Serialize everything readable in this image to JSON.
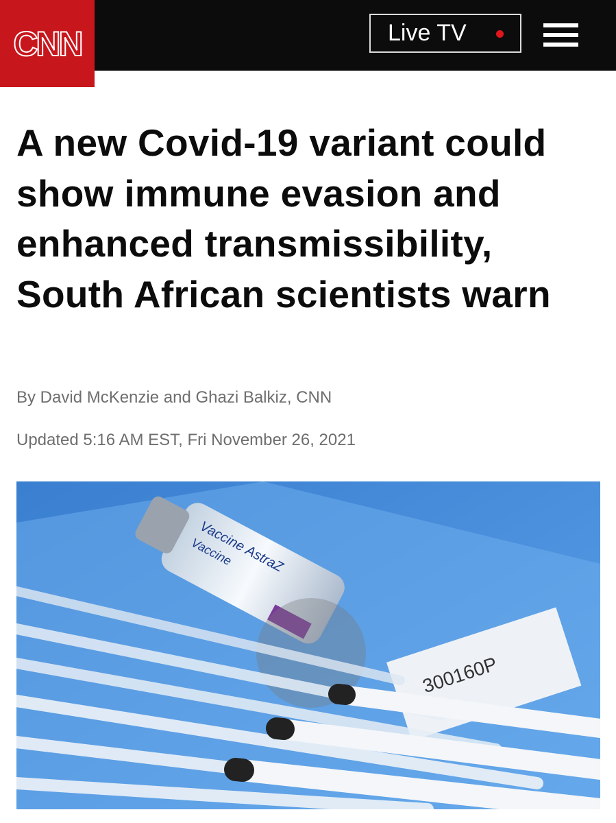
{
  "header": {
    "logo": "CNN",
    "live_tv": "Live TV"
  },
  "article": {
    "headline": "A new Covid-19 variant could show immune evasion and enhanced transmissibility, South African scientists warn",
    "byline": "By David McKenzie and Ghazi Balkiz, CNN",
    "updated": "Updated 5:16 AM EST, Fri November 26, 2021"
  }
}
